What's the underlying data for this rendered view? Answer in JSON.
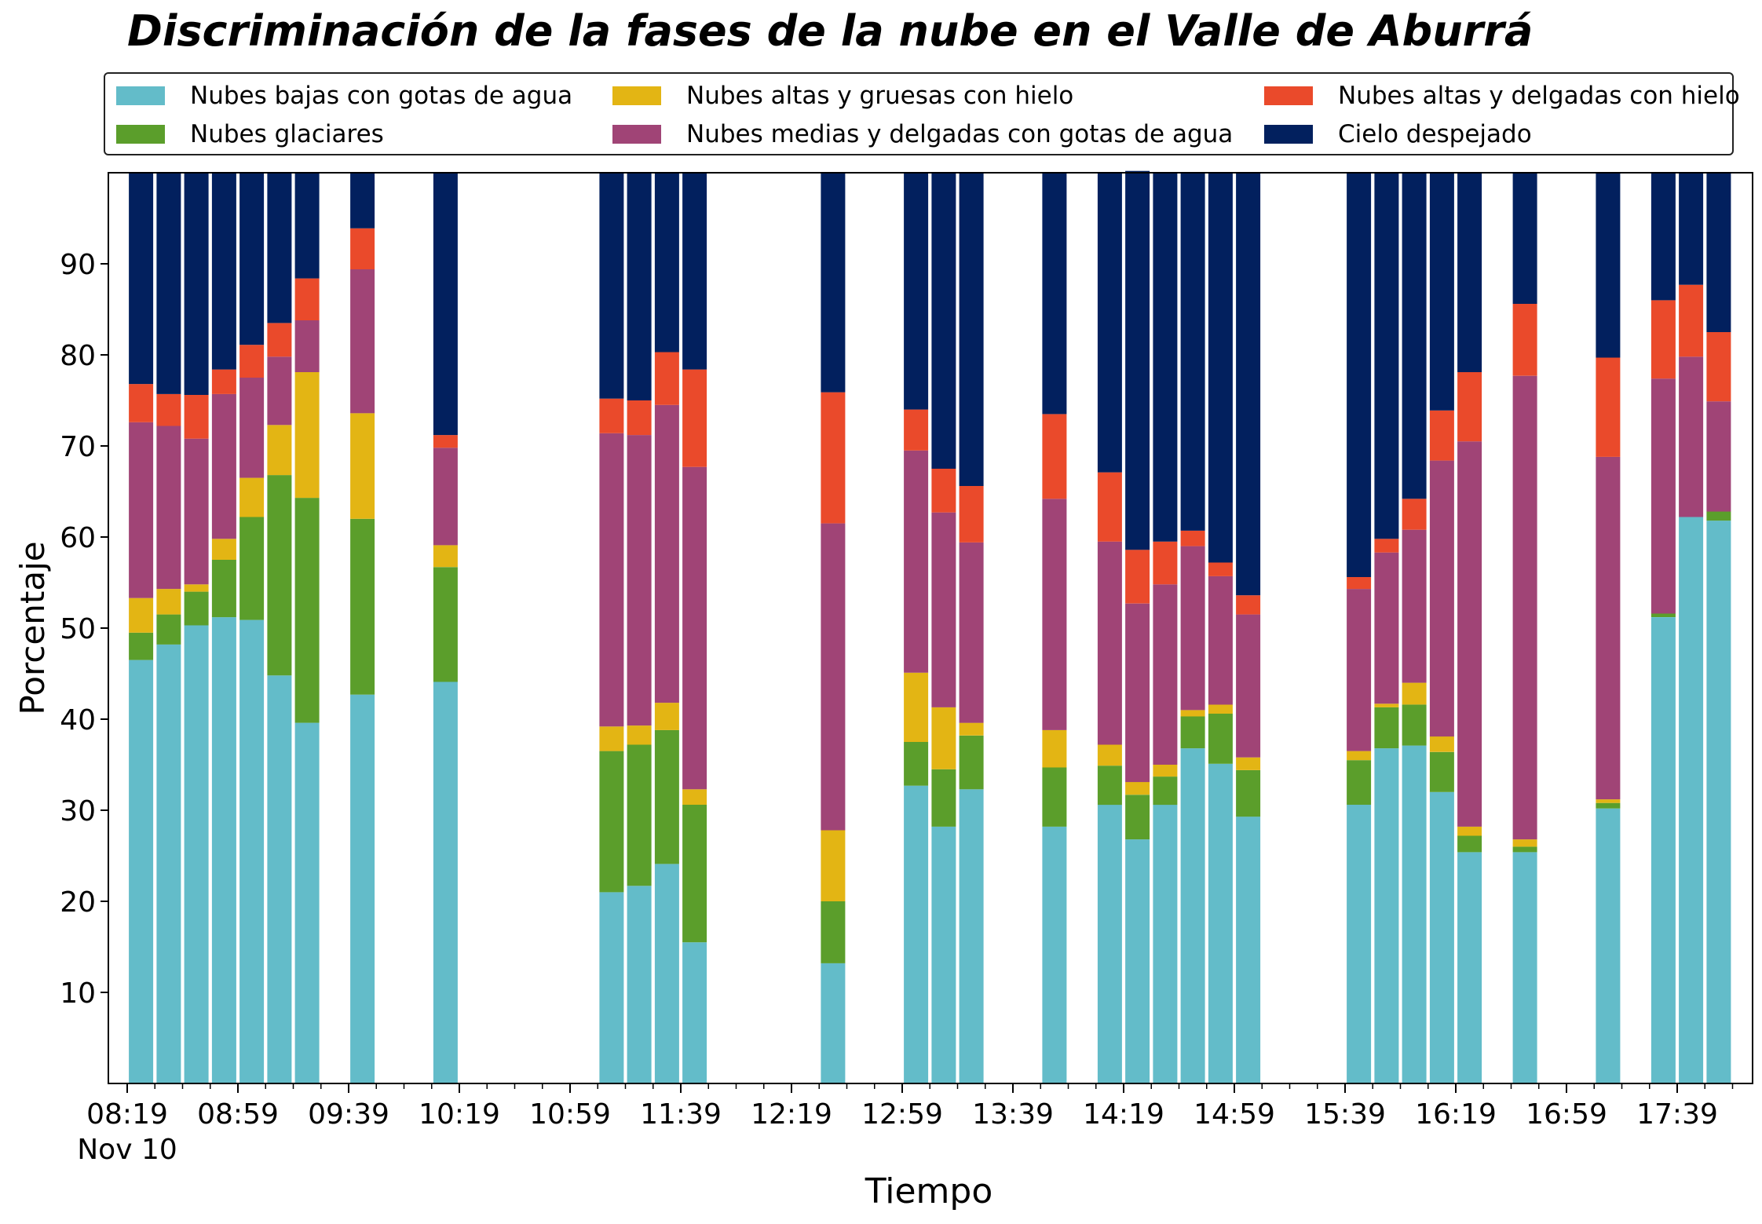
{
  "chart_data": {
    "type": "bar",
    "stacked": true,
    "title": "Discriminación de la fases de la nube en el Valle de Aburrá",
    "xlabel": "Tiempo",
    "ylabel": "Porcentaje",
    "ylim": [
      0,
      100
    ],
    "yticks": [
      10,
      20,
      30,
      40,
      50,
      60,
      70,
      80,
      90
    ],
    "xticks": [
      "08:19",
      "08:59",
      "09:39",
      "10:19",
      "10:59",
      "11:39",
      "12:19",
      "12:59",
      "13:39",
      "14:19",
      "14:59",
      "15:39",
      "16:19",
      "16:59",
      "17:39"
    ],
    "x_date_label": "Nov 10",
    "legend_location": "top, above plot",
    "grid": false,
    "categories": [
      "08:24",
      "08:34",
      "08:44",
      "08:54",
      "09:04",
      "09:14",
      "09:24",
      "09:44",
      "10:14",
      "11:14",
      "11:24",
      "11:34",
      "11:44",
      "12:34",
      "13:04",
      "13:14",
      "13:24",
      "13:54",
      "14:14",
      "14:24",
      "14:34",
      "14:44",
      "14:54",
      "15:04",
      "15:44",
      "15:54",
      "16:04",
      "16:14",
      "16:24",
      "16:44",
      "17:14",
      "17:34",
      "17:44",
      "17:54"
    ],
    "series": [
      {
        "name": "Nubes bajas con gotas de agua",
        "color": "#63bcc9",
        "values": [
          46.5,
          48.2,
          50.3,
          51.2,
          50.9,
          44.8,
          39.6,
          42.7,
          44.1,
          21.0,
          21.7,
          24.1,
          15.5,
          13.2,
          32.7,
          28.2,
          32.3,
          28.2,
          30.6,
          26.8,
          30.6,
          36.8,
          35.1,
          29.3,
          30.6,
          36.8,
          37.1,
          32.0,
          25.4,
          25.4,
          30.2,
          51.2,
          62.2,
          61.8
        ]
      },
      {
        "name": "Nubes glaciares",
        "color": "#5b9e2b",
        "values": [
          3.0,
          3.3,
          3.7,
          6.3,
          11.3,
          22.0,
          24.7,
          19.3,
          12.6,
          15.5,
          15.5,
          14.7,
          15.1,
          6.8,
          4.8,
          6.3,
          5.9,
          6.5,
          4.3,
          4.9,
          3.1,
          3.5,
          5.5,
          5.1,
          4.9,
          4.5,
          4.5,
          4.4,
          1.8,
          0.6,
          0.6,
          0.4,
          0.0,
          1.0
        ]
      },
      {
        "name": "Nubes altas y gruesas con hielo",
        "color": "#e3b514",
        "values": [
          3.8,
          2.8,
          0.8,
          2.3,
          4.3,
          5.5,
          13.8,
          11.6,
          2.4,
          2.7,
          2.1,
          3.0,
          1.7,
          7.8,
          7.6,
          6.8,
          1.4,
          4.1,
          2.3,
          1.4,
          1.3,
          0.7,
          1.0,
          1.4,
          1.0,
          0.4,
          2.4,
          1.7,
          1.0,
          0.8,
          0.4,
          0.0,
          0.0,
          0.0
        ]
      },
      {
        "name": "Nubes medias y delgadas con gotas de agua",
        "color": "#a04476",
        "values": [
          19.3,
          17.9,
          16.0,
          15.9,
          11.0,
          7.5,
          5.7,
          15.8,
          10.7,
          32.2,
          31.9,
          32.7,
          35.4,
          33.7,
          24.4,
          21.4,
          19.8,
          25.4,
          22.3,
          19.6,
          19.8,
          18.0,
          14.1,
          15.7,
          17.8,
          16.6,
          16.8,
          30.3,
          42.3,
          50.9,
          37.6,
          25.8,
          17.6,
          12.1
        ]
      },
      {
        "name": "Nubes altas y delgadas con hielo",
        "color": "#ea4a2b",
        "values": [
          4.2,
          3.5,
          4.8,
          2.7,
          3.6,
          3.7,
          4.6,
          4.5,
          1.4,
          3.8,
          3.8,
          5.8,
          10.7,
          14.4,
          4.5,
          4.8,
          6.2,
          9.3,
          7.6,
          5.9,
          4.7,
          1.7,
          1.5,
          2.1,
          1.3,
          1.5,
          3.4,
          5.5,
          7.6,
          7.9,
          10.9,
          8.6,
          7.9,
          7.6
        ]
      },
      {
        "name": "Cielo despejado",
        "color": "#02205e",
        "values": [
          23.2,
          24.3,
          24.4,
          21.6,
          18.9,
          16.5,
          11.6,
          6.1,
          28.8,
          24.8,
          25.0,
          19.7,
          21.6,
          24.1,
          26.0,
          32.5,
          34.4,
          26.5,
          32.9,
          41.6,
          40.5,
          39.3,
          42.8,
          46.4,
          44.4,
          40.2,
          35.8,
          26.1,
          21.9,
          14.4,
          20.3,
          14.0,
          12.3,
          17.5
        ]
      }
    ]
  }
}
